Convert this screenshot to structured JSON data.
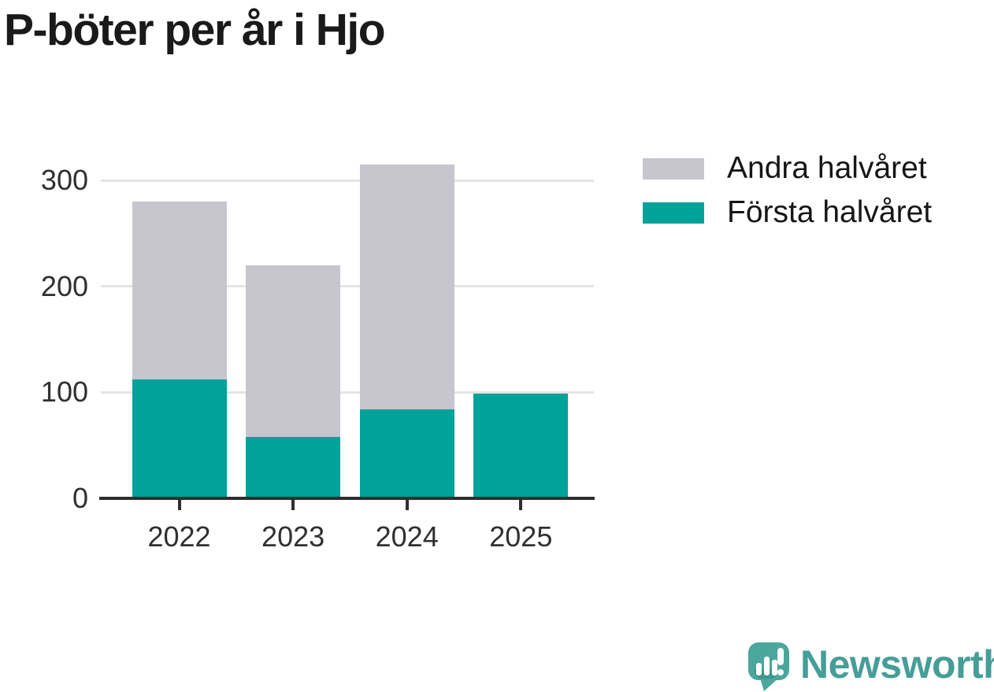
{
  "title": "P-böter per år i Hjo",
  "chart_data": {
    "type": "bar",
    "stacked": true,
    "title": "P-böter per år i Hjo",
    "categories": [
      "2022",
      "2023",
      "2024",
      "2025"
    ],
    "series": [
      {
        "name": "Första halvåret",
        "color": "#00a29a",
        "values": [
          112,
          58,
          84,
          99
        ]
      },
      {
        "name": "Andra halvåret",
        "color": "#c7c5cd",
        "values": [
          168,
          162,
          231,
          0
        ]
      }
    ],
    "totals": [
      280,
      220,
      315,
      99
    ],
    "xlabel": "",
    "ylabel": "",
    "yticks": [
      0,
      100,
      200,
      300
    ],
    "ylim": [
      0,
      325
    ],
    "grid": true,
    "legend_position": "right-top",
    "legend_order": [
      "Andra halvåret",
      "Första halvåret"
    ]
  },
  "colors": {
    "first_half": "#00a29a",
    "second_half": "#c7c5cd",
    "axis": "#2e2e2e",
    "gridline": "#e4e4e4",
    "tick_text": "#303030",
    "title_text": "#1a1a1a",
    "brand_teal": "#459e97"
  },
  "branding": {
    "name": "Newsworthy",
    "logo_icon": "speech-bubble-bar-chart-icon"
  }
}
